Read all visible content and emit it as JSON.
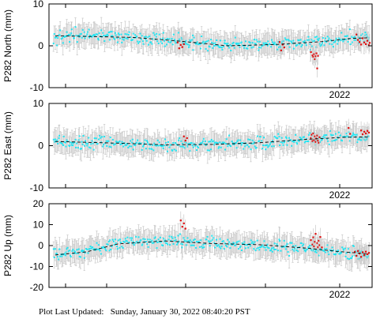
{
  "footer": {
    "label": "Plot Last Updated:",
    "value": "Sunday, January 30, 2022 08:40:20 PST"
  },
  "colors": {
    "normal": "#22e5f2",
    "outlier": "#e01010",
    "errorbar": "#c8c8c8",
    "trend": "#000000",
    "frame": "#000000"
  },
  "chart_data": [
    {
      "type": "scatter",
      "ylabel": "P282 North (mm)",
      "ylim": [
        -10,
        10
      ],
      "yticks": [
        10,
        0,
        -10
      ],
      "xtick_label": "2022",
      "x_range": [
        2020.16,
        2022.22
      ],
      "points_per_series": 380,
      "trend": [
        [
          2020.2,
          2.4
        ],
        [
          2020.7,
          2.0
        ],
        [
          2021.0,
          1.1
        ],
        [
          2021.3,
          0.0
        ],
        [
          2021.6,
          0.3
        ],
        [
          2021.9,
          1.0
        ],
        [
          2022.1,
          1.8
        ],
        [
          2022.2,
          1.9
        ]
      ],
      "outliers": [
        [
          2020.98,
          0.8
        ],
        [
          2020.99,
          -0.6
        ],
        [
          2021.0,
          0.2
        ],
        [
          2021.01,
          -0.3
        ],
        [
          2021.02,
          0.4
        ],
        [
          2021.63,
          0.9
        ],
        [
          2021.64,
          -1.1
        ],
        [
          2021.65,
          0.3
        ],
        [
          2021.66,
          -0.4
        ],
        [
          2021.83,
          -1.5
        ],
        [
          2021.84,
          -2.3
        ],
        [
          2021.845,
          -2.6
        ],
        [
          2021.85,
          -2.0
        ],
        [
          2021.855,
          -3.2
        ],
        [
          2021.86,
          -2.5
        ],
        [
          2021.865,
          -1.8
        ],
        [
          2021.87,
          -5.4
        ],
        [
          2021.875,
          -2.4
        ],
        [
          2022.12,
          2.7
        ],
        [
          2022.13,
          1.4
        ],
        [
          2022.14,
          0.9
        ],
        [
          2022.15,
          0.3
        ],
        [
          2022.16,
          1.8
        ],
        [
          2022.17,
          0.8
        ],
        [
          2022.18,
          0.4
        ],
        [
          2022.19,
          1.2
        ],
        [
          2022.2,
          0.2
        ],
        [
          2022.205,
          0.7
        ]
      ]
    },
    {
      "type": "scatter",
      "ylabel": "P282 East (mm)",
      "ylim": [
        -10,
        10
      ],
      "yticks": [
        10,
        0,
        -10
      ],
      "xtick_label": "2022",
      "x_range": [
        2020.16,
        2022.22
      ],
      "points_per_series": 380,
      "trend": [
        [
          2020.2,
          1.0
        ],
        [
          2020.6,
          0.6
        ],
        [
          2020.9,
          0.2
        ],
        [
          2021.2,
          0.3
        ],
        [
          2021.5,
          0.7
        ],
        [
          2021.8,
          1.5
        ],
        [
          2022.05,
          2.0
        ],
        [
          2022.2,
          2.1
        ]
      ],
      "outliers": [
        [
          2021.02,
          2.2
        ],
        [
          2021.03,
          1.2
        ],
        [
          2021.04,
          1.8
        ],
        [
          2021.83,
          1.8
        ],
        [
          2021.835,
          2.6
        ],
        [
          2021.84,
          1.1
        ],
        [
          2021.845,
          2.9
        ],
        [
          2021.85,
          1.3
        ],
        [
          2021.855,
          2.2
        ],
        [
          2021.86,
          0.9
        ],
        [
          2021.865,
          1.7
        ],
        [
          2021.87,
          2.4
        ],
        [
          2021.875,
          1.2
        ],
        [
          2021.88,
          0.7
        ],
        [
          2021.885,
          2.0
        ],
        [
          2022.07,
          4.2
        ],
        [
          2022.08,
          2.8
        ],
        [
          2022.15,
          3.6
        ],
        [
          2022.16,
          2.7
        ],
        [
          2022.17,
          3.3
        ],
        [
          2022.18,
          2.9
        ],
        [
          2022.19,
          3.5
        ],
        [
          2022.2,
          3.1
        ]
      ]
    },
    {
      "type": "scatter",
      "ylabel": "P282 Up (mm)",
      "ylim": [
        -20,
        20
      ],
      "yticks": [
        20,
        10,
        0,
        -10,
        -20
      ],
      "xtick_label": "2022",
      "x_range": [
        2020.16,
        2022.22
      ],
      "points_per_series": 380,
      "trend": [
        [
          2020.2,
          -4.5
        ],
        [
          2020.4,
          -3.0
        ],
        [
          2020.6,
          0.8
        ],
        [
          2020.9,
          2.2
        ],
        [
          2021.2,
          1.0
        ],
        [
          2021.5,
          0.4
        ],
        [
          2021.8,
          -1.2
        ],
        [
          2022.0,
          -2.8
        ],
        [
          2022.2,
          -4.0
        ]
      ],
      "outliers": [
        [
          2021.0,
          12.0
        ],
        [
          2021.01,
          9.0
        ],
        [
          2021.02,
          10.6
        ],
        [
          2021.03,
          8.1
        ],
        [
          2021.83,
          2.6
        ],
        [
          2021.84,
          0.5
        ],
        [
          2021.845,
          3.9
        ],
        [
          2021.85,
          -0.4
        ],
        [
          2021.855,
          1.8
        ],
        [
          2021.86,
          5.6
        ],
        [
          2021.87,
          1.2
        ],
        [
          2021.875,
          -0.8
        ],
        [
          2021.88,
          2.3
        ],
        [
          2021.885,
          0.2
        ],
        [
          2021.89,
          4.1
        ],
        [
          2021.9,
          -0.9
        ],
        [
          2022.11,
          -3.0
        ],
        [
          2022.12,
          -4.9
        ],
        [
          2022.13,
          -2.6
        ],
        [
          2022.14,
          -3.8
        ],
        [
          2022.15,
          -5.4
        ],
        [
          2022.16,
          -3.2
        ],
        [
          2022.17,
          -4.6
        ],
        [
          2022.18,
          -2.9
        ],
        [
          2022.19,
          -4.1
        ],
        [
          2022.2,
          -3.5
        ]
      ]
    }
  ]
}
